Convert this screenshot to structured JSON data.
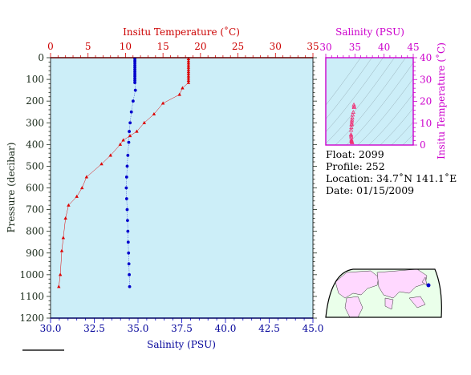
{
  "chart_data": [
    {
      "type": "scatter",
      "title": "",
      "top_axis_label": "Insitu Temperature (˚C)",
      "bottom_axis_label": "Salinity (PSU)",
      "ylabel": "Pressure (decibar)",
      "temp_lim": [
        0,
        35
      ],
      "temp_ticks": [
        "0",
        "5",
        "10",
        "15",
        "20",
        "25",
        "30",
        "35"
      ],
      "sal_lim": [
        30.0,
        45.0
      ],
      "sal_ticks": [
        "30.0",
        "32.5",
        "35.0",
        "37.5",
        "40.0",
        "42.5",
        "45.0"
      ],
      "pressure_lim": [
        0,
        1200
      ],
      "pressure_ticks": [
        "0",
        "100",
        "200",
        "300",
        "400",
        "500",
        "600",
        "700",
        "800",
        "900",
        "1000",
        "1100",
        "1200"
      ],
      "series": [
        {
          "kind": "temperature",
          "color": "#dd0000",
          "points": [
            [
              18.4,
              5
            ],
            [
              18.4,
              15
            ],
            [
              18.4,
              25
            ],
            [
              18.4,
              35
            ],
            [
              18.4,
              45
            ],
            [
              18.4,
              55
            ],
            [
              18.4,
              65
            ],
            [
              18.4,
              75
            ],
            [
              18.4,
              85
            ],
            [
              18.4,
              95
            ],
            [
              18.4,
              105
            ],
            [
              18.4,
              115
            ],
            [
              17.6,
              140
            ],
            [
              17.2,
              170
            ],
            [
              15.0,
              210
            ],
            [
              13.8,
              260
            ],
            [
              12.5,
              300
            ],
            [
              11.5,
              340
            ],
            [
              10.6,
              360
            ],
            [
              9.7,
              380
            ],
            [
              9.3,
              400
            ],
            [
              8.0,
              450
            ],
            [
              6.8,
              490
            ],
            [
              4.8,
              550
            ],
            [
              4.2,
              600
            ],
            [
              3.5,
              640
            ],
            [
              2.4,
              680
            ],
            [
              2.0,
              740
            ],
            [
              1.7,
              830
            ],
            [
              1.5,
              890
            ],
            [
              1.3,
              1000
            ],
            [
              1.1,
              1055
            ]
          ]
        },
        {
          "kind": "salinity",
          "color": "#0000cc",
          "points": [
            [
              34.82,
              5
            ],
            [
              34.82,
              15
            ],
            [
              34.82,
              25
            ],
            [
              34.82,
              35
            ],
            [
              34.82,
              45
            ],
            [
              34.82,
              55
            ],
            [
              34.82,
              65
            ],
            [
              34.82,
              75
            ],
            [
              34.82,
              85
            ],
            [
              34.82,
              95
            ],
            [
              34.82,
              105
            ],
            [
              34.82,
              115
            ],
            [
              34.85,
              150
            ],
            [
              34.72,
              200
            ],
            [
              34.62,
              250
            ],
            [
              34.55,
              300
            ],
            [
              34.5,
              340
            ],
            [
              34.47,
              390
            ],
            [
              34.42,
              450
            ],
            [
              34.38,
              500
            ],
            [
              34.35,
              550
            ],
            [
              34.33,
              600
            ],
            [
              34.35,
              650
            ],
            [
              34.38,
              700
            ],
            [
              34.4,
              750
            ],
            [
              34.42,
              800
            ],
            [
              34.44,
              850
            ],
            [
              34.46,
              900
            ],
            [
              34.48,
              950
            ],
            [
              34.5,
              1000
            ],
            [
              34.52,
              1055
            ]
          ]
        }
      ]
    },
    {
      "type": "scatter",
      "title": "",
      "top_axis_label": "Salinity (PSU)",
      "ylabel": "Insitu Temperature (˚C)",
      "sal_lim": [
        30,
        45
      ],
      "sal_ticks": [
        "30",
        "35",
        "40",
        "45"
      ],
      "temp_lim": [
        0,
        40
      ],
      "temp_ticks": [
        "0",
        "10",
        "20",
        "30",
        "40"
      ],
      "series": [
        {
          "kind": "ts",
          "color": "#ee3377",
          "points": [
            [
              34.82,
              18.4
            ],
            [
              34.85,
              17.6
            ],
            [
              34.85,
              17.2
            ],
            [
              34.72,
              15.0
            ],
            [
              34.62,
              13.8
            ],
            [
              34.55,
              12.5
            ],
            [
              34.5,
              11.5
            ],
            [
              34.47,
              10.6
            ],
            [
              34.45,
              9.7
            ],
            [
              34.42,
              9.3
            ],
            [
              34.38,
              8.0
            ],
            [
              34.35,
              6.8
            ],
            [
              34.33,
              4.8
            ],
            [
              34.35,
              4.2
            ],
            [
              34.38,
              3.5
            ],
            [
              34.4,
              2.4
            ],
            [
              34.42,
              2.0
            ],
            [
              34.44,
              1.7
            ],
            [
              34.46,
              1.5
            ],
            [
              34.5,
              1.3
            ],
            [
              34.52,
              1.1
            ]
          ]
        }
      ]
    }
  ],
  "info": {
    "float": "Float:  2099",
    "profile": "Profile:  252",
    "location": "Location:  34.7˚N  141.1˚E",
    "date": "Date:  01/15/2009"
  },
  "colors": {
    "plot_bg": "#cceef8",
    "temperature": "#dd0000",
    "salinity": "#0000cc",
    "ts": "#ee3377",
    "magenta_axis": "#cc00cc",
    "map_land": "#ffd8ff",
    "map_ocean": "#eaffea"
  }
}
